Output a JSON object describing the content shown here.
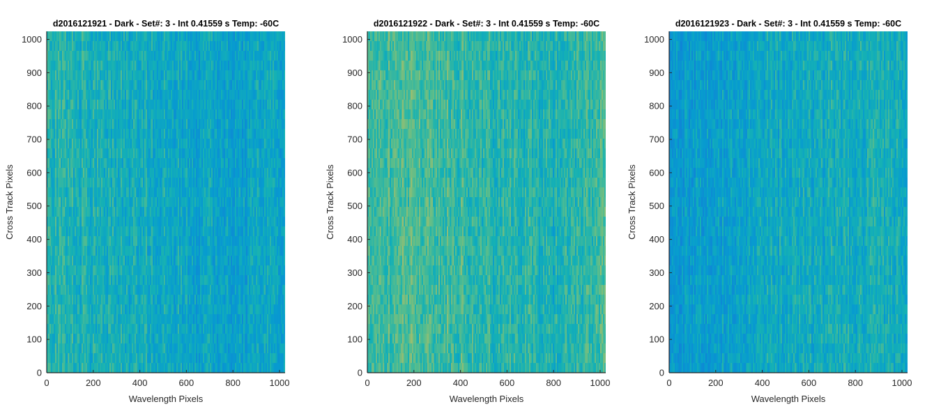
{
  "chart_data": [
    {
      "type": "heatmap",
      "title": "d2016121921 - Dark - Set#: 3 - Int 0.41559 s Temp: -60C",
      "xlabel": "Wavelength Pixels",
      "ylabel": "Cross Track Pixels",
      "xlim": [
        0,
        1024
      ],
      "ylim": [
        0,
        1024
      ],
      "xticks": [
        0,
        200,
        400,
        600,
        800,
        1000
      ],
      "yticks": [
        0,
        100,
        200,
        300,
        400,
        500,
        600,
        700,
        800,
        900,
        1000
      ],
      "colormap": "parula",
      "relative_level_by_column": [
        {
          "x": 0,
          "level": 0.56
        },
        {
          "x": 200,
          "level": 0.54
        },
        {
          "x": 400,
          "level": 0.52
        },
        {
          "x": 600,
          "level": 0.49
        },
        {
          "x": 800,
          "level": 0.47
        },
        {
          "x": 1024,
          "level": 0.5
        }
      ],
      "grid": false
    },
    {
      "type": "heatmap",
      "title": "d2016121922 - Dark - Set#: 3 - Int 0.41559 s Temp: -60C",
      "xlabel": "Wavelength Pixels",
      "ylabel": "Cross Track Pixels",
      "xlim": [
        0,
        1024
      ],
      "ylim": [
        0,
        1024
      ],
      "xticks": [
        0,
        200,
        400,
        600,
        800,
        1000
      ],
      "yticks": [
        0,
        100,
        200,
        300,
        400,
        500,
        600,
        700,
        800,
        900,
        1000
      ],
      "colormap": "parula",
      "relative_level_by_column": [
        {
          "x": 0,
          "level": 0.62
        },
        {
          "x": 200,
          "level": 0.63
        },
        {
          "x": 400,
          "level": 0.6
        },
        {
          "x": 600,
          "level": 0.57
        },
        {
          "x": 800,
          "level": 0.55
        },
        {
          "x": 1024,
          "level": 0.62
        }
      ],
      "grid": false
    },
    {
      "type": "heatmap",
      "title": "d2016121923 - Dark - Set#: 3 - Int 0.41559 s Temp: -60C",
      "xlabel": "Wavelength Pixels",
      "ylabel": "Cross Track Pixels",
      "xlim": [
        0,
        1024
      ],
      "ylim": [
        0,
        1024
      ],
      "xticks": [
        0,
        200,
        400,
        600,
        800,
        1000
      ],
      "yticks": [
        0,
        100,
        200,
        300,
        400,
        500,
        600,
        700,
        800,
        900,
        1000
      ],
      "colormap": "parula",
      "relative_level_by_column": [
        {
          "x": 0,
          "level": 0.42
        },
        {
          "x": 200,
          "level": 0.47
        },
        {
          "x": 400,
          "level": 0.5
        },
        {
          "x": 600,
          "level": 0.51
        },
        {
          "x": 800,
          "level": 0.53
        },
        {
          "x": 1024,
          "level": 0.52
        }
      ],
      "grid": false
    }
  ]
}
